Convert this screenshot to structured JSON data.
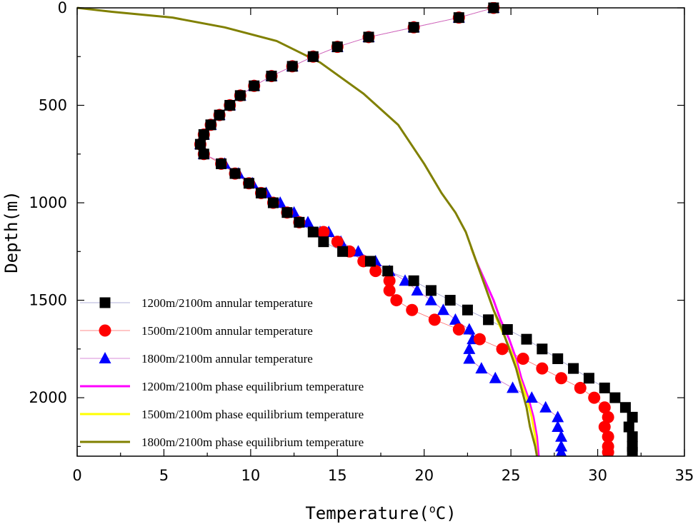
{
  "chart_data": {
    "type": "scatter",
    "xlabel": "Temperature(",
    "xlabel_sup": "o",
    "xlabel_unit": "C)",
    "ylabel": "Depth(m)",
    "xlim": [
      0,
      35
    ],
    "ylim": [
      0,
      2300
    ],
    "y_inverted": true,
    "x_ticks": [
      0,
      5,
      10,
      15,
      20,
      25,
      30,
      35
    ],
    "y_ticks": [
      0,
      500,
      1000,
      1500,
      2000
    ],
    "legend_position": "bottom-left",
    "series": [
      {
        "name": "1200m/2100m annular temperature",
        "kind": "markers",
        "marker": "square",
        "color": "#000000",
        "line_color": "#9999cc",
        "points": [
          [
            24.0,
            0
          ],
          [
            22.0,
            50
          ],
          [
            19.4,
            100
          ],
          [
            16.8,
            150
          ],
          [
            15.0,
            200
          ],
          [
            13.6,
            250
          ],
          [
            12.4,
            300
          ],
          [
            11.2,
            350
          ],
          [
            10.2,
            400
          ],
          [
            9.4,
            450
          ],
          [
            8.8,
            500
          ],
          [
            8.2,
            550
          ],
          [
            7.7,
            600
          ],
          [
            7.3,
            650
          ],
          [
            7.1,
            700
          ],
          [
            7.3,
            750
          ],
          [
            8.3,
            800
          ],
          [
            9.1,
            850
          ],
          [
            9.9,
            900
          ],
          [
            10.6,
            950
          ],
          [
            11.3,
            1000
          ],
          [
            12.1,
            1050
          ],
          [
            12.8,
            1100
          ],
          [
            13.6,
            1150
          ],
          [
            14.2,
            1200
          ],
          [
            15.3,
            1250
          ],
          [
            16.9,
            1300
          ],
          [
            17.9,
            1350
          ],
          [
            19.4,
            1400
          ],
          [
            20.4,
            1450
          ],
          [
            21.5,
            1500
          ],
          [
            22.5,
            1550
          ],
          [
            23.7,
            1600
          ],
          [
            24.8,
            1650
          ],
          [
            25.9,
            1700
          ],
          [
            26.8,
            1750
          ],
          [
            27.7,
            1800
          ],
          [
            28.6,
            1850
          ],
          [
            29.5,
            1900
          ],
          [
            30.4,
            1950
          ],
          [
            31.0,
            2000
          ],
          [
            31.6,
            2050
          ],
          [
            32.0,
            2100
          ],
          [
            31.8,
            2150
          ],
          [
            32.0,
            2200
          ],
          [
            32.0,
            2250
          ],
          [
            32.0,
            2280
          ]
        ]
      },
      {
        "name": "1500m/2100m annular temperature",
        "kind": "markers",
        "marker": "circle",
        "color": "#ff0000",
        "line_color": "#ff6666",
        "points": [
          [
            24.0,
            0
          ],
          [
            22.0,
            50
          ],
          [
            19.4,
            100
          ],
          [
            16.8,
            150
          ],
          [
            15.0,
            200
          ],
          [
            13.6,
            250
          ],
          [
            12.4,
            300
          ],
          [
            11.2,
            350
          ],
          [
            10.2,
            400
          ],
          [
            9.4,
            450
          ],
          [
            8.8,
            500
          ],
          [
            8.2,
            550
          ],
          [
            7.7,
            600
          ],
          [
            7.3,
            650
          ],
          [
            7.1,
            700
          ],
          [
            7.3,
            750
          ],
          [
            8.3,
            800
          ],
          [
            9.1,
            850
          ],
          [
            9.9,
            900
          ],
          [
            10.6,
            950
          ],
          [
            11.3,
            1000
          ],
          [
            12.1,
            1050
          ],
          [
            12.8,
            1100
          ],
          [
            14.2,
            1150
          ],
          [
            15.0,
            1200
          ],
          [
            15.7,
            1250
          ],
          [
            16.5,
            1300
          ],
          [
            17.2,
            1350
          ],
          [
            18.0,
            1400
          ],
          [
            18.0,
            1450
          ],
          [
            18.4,
            1500
          ],
          [
            19.3,
            1550
          ],
          [
            20.6,
            1600
          ],
          [
            22.0,
            1650
          ],
          [
            23.2,
            1700
          ],
          [
            24.5,
            1750
          ],
          [
            25.7,
            1800
          ],
          [
            26.8,
            1850
          ],
          [
            27.9,
            1900
          ],
          [
            29.0,
            1950
          ],
          [
            29.8,
            2000
          ],
          [
            30.4,
            2050
          ],
          [
            30.6,
            2100
          ],
          [
            30.4,
            2150
          ],
          [
            30.6,
            2200
          ],
          [
            30.6,
            2250
          ],
          [
            30.6,
            2280
          ]
        ]
      },
      {
        "name": "1800m/2100m annular temperature",
        "kind": "markers",
        "marker": "triangle",
        "color": "#0000ff",
        "line_color": "#cc66cc",
        "points": [
          [
            24.0,
            0
          ],
          [
            22.0,
            50
          ],
          [
            19.4,
            100
          ],
          [
            16.8,
            150
          ],
          [
            15.0,
            200
          ],
          [
            13.6,
            250
          ],
          [
            12.4,
            300
          ],
          [
            11.2,
            350
          ],
          [
            10.2,
            400
          ],
          [
            9.4,
            450
          ],
          [
            8.8,
            500
          ],
          [
            8.2,
            550
          ],
          [
            7.7,
            600
          ],
          [
            7.3,
            650
          ],
          [
            7.1,
            700
          ],
          [
            7.3,
            750
          ],
          [
            8.5,
            800
          ],
          [
            9.3,
            850
          ],
          [
            10.1,
            900
          ],
          [
            10.9,
            950
          ],
          [
            11.7,
            1000
          ],
          [
            12.5,
            1050
          ],
          [
            13.3,
            1100
          ],
          [
            14.0,
            1150
          ],
          [
            14.5,
            1150
          ],
          [
            15.2,
            1200
          ],
          [
            16.2,
            1250
          ],
          [
            17.2,
            1300
          ],
          [
            18.0,
            1350
          ],
          [
            18.9,
            1400
          ],
          [
            19.6,
            1450
          ],
          [
            20.4,
            1500
          ],
          [
            21.1,
            1550
          ],
          [
            21.8,
            1600
          ],
          [
            22.6,
            1650
          ],
          [
            22.8,
            1700
          ],
          [
            22.6,
            1750
          ],
          [
            22.6,
            1800
          ],
          [
            23.3,
            1850
          ],
          [
            24.1,
            1900
          ],
          [
            25.1,
            1950
          ],
          [
            26.2,
            2000
          ],
          [
            27.0,
            2050
          ],
          [
            27.7,
            2100
          ],
          [
            27.7,
            2150
          ],
          [
            27.9,
            2200
          ],
          [
            27.9,
            2250
          ],
          [
            27.9,
            2280
          ]
        ]
      },
      {
        "name": "1200m/2100m phase equilibrium temperature",
        "kind": "line",
        "color": "#ff00ff",
        "points": [
          [
            22.7,
            1230
          ],
          [
            23.0,
            1300
          ],
          [
            23.5,
            1400
          ],
          [
            24.0,
            1500
          ],
          [
            24.4,
            1600
          ],
          [
            24.9,
            1700
          ],
          [
            25.3,
            1800
          ],
          [
            25.6,
            1900
          ],
          [
            26.0,
            2000
          ],
          [
            26.3,
            2100
          ],
          [
            26.5,
            2200
          ],
          [
            26.6,
            2300
          ]
        ]
      },
      {
        "name": "1500m/2100m phase equilibrium temperature",
        "kind": "line",
        "color": "#ffff00",
        "points": [
          [
            22.7,
            1230
          ],
          [
            23.0,
            1300
          ],
          [
            23.4,
            1400
          ],
          [
            23.8,
            1500
          ],
          [
            24.2,
            1600
          ],
          [
            24.7,
            1700
          ],
          [
            25.2,
            1800
          ],
          [
            25.5,
            1900
          ],
          [
            25.9,
            2000
          ],
          [
            26.2,
            2100
          ],
          [
            26.4,
            2200
          ],
          [
            26.5,
            2300
          ]
        ]
      },
      {
        "name": "1800m/2100m phase equilibrium temperature",
        "kind": "line",
        "color": "#808000",
        "points": [
          [
            0,
            0
          ],
          [
            2.0,
            20
          ],
          [
            5.5,
            50
          ],
          [
            8.5,
            100
          ],
          [
            11.5,
            170
          ],
          [
            14.0,
            280
          ],
          [
            16.5,
            440
          ],
          [
            18.5,
            600
          ],
          [
            20.0,
            800
          ],
          [
            21.0,
            950
          ],
          [
            21.8,
            1050
          ],
          [
            22.4,
            1150
          ],
          [
            22.8,
            1250
          ],
          [
            23.2,
            1350
          ],
          [
            23.6,
            1450
          ],
          [
            24.0,
            1550
          ],
          [
            24.5,
            1650
          ],
          [
            24.9,
            1750
          ],
          [
            25.3,
            1850
          ],
          [
            25.6,
            1950
          ],
          [
            25.9,
            2050
          ],
          [
            26.1,
            2150
          ],
          [
            26.4,
            2250
          ],
          [
            26.5,
            2300
          ]
        ]
      }
    ]
  }
}
